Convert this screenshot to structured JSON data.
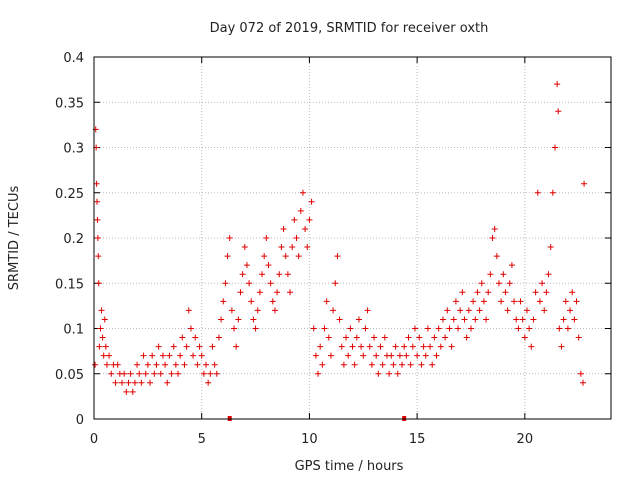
{
  "chart_data": {
    "type": "scatter",
    "title": "Day 072 of 2019, SRMTID for receiver oxth",
    "xlabel": "GPS time / hours",
    "ylabel": "SRMTID / TECUs",
    "xlim": [
      0,
      24
    ],
    "ylim": [
      0,
      0.4
    ],
    "xticks": [
      0,
      5,
      10,
      15,
      20
    ],
    "yticks": [
      0,
      0.05,
      0.1,
      0.15,
      0.2,
      0.25,
      0.3,
      0.35,
      0.4
    ],
    "xtick_labels": [
      "0",
      "5",
      "10",
      "15",
      "20"
    ],
    "ytick_labels": [
      "0",
      "0.05",
      "0.1",
      "0.15",
      "0.2",
      "0.25",
      "0.3",
      "0.35",
      "0.4"
    ],
    "grid": true,
    "marker": "+",
    "color": "#e00000",
    "series": [
      {
        "name": "SRMTID",
        "points": [
          [
            0.05,
            0.06
          ],
          [
            0.08,
            0.32
          ],
          [
            0.1,
            0.3
          ],
          [
            0.12,
            0.26
          ],
          [
            0.14,
            0.24
          ],
          [
            0.16,
            0.22
          ],
          [
            0.18,
            0.2
          ],
          [
            0.2,
            0.18
          ],
          [
            0.22,
            0.15
          ],
          [
            0.25,
            0.08
          ],
          [
            0.3,
            0.1
          ],
          [
            0.35,
            0.12
          ],
          [
            0.4,
            0.09
          ],
          [
            0.45,
            0.07
          ],
          [
            0.5,
            0.11
          ],
          [
            0.55,
            0.08
          ],
          [
            0.6,
            0.06
          ],
          [
            0.7,
            0.07
          ],
          [
            0.8,
            0.05
          ],
          [
            0.9,
            0.06
          ],
          [
            1.0,
            0.04
          ],
          [
            1.1,
            0.06
          ],
          [
            1.2,
            0.05
          ],
          [
            1.3,
            0.04
          ],
          [
            1.4,
            0.05
          ],
          [
            1.5,
            0.03
          ],
          [
            1.6,
            0.04
          ],
          [
            1.7,
            0.05
          ],
          [
            1.8,
            0.03
          ],
          [
            1.9,
            0.04
          ],
          [
            2.0,
            0.06
          ],
          [
            2.1,
            0.05
          ],
          [
            2.2,
            0.04
          ],
          [
            2.3,
            0.07
          ],
          [
            2.4,
            0.05
          ],
          [
            2.5,
            0.06
          ],
          [
            2.6,
            0.04
          ],
          [
            2.7,
            0.07
          ],
          [
            2.8,
            0.05
          ],
          [
            2.9,
            0.06
          ],
          [
            3.0,
            0.08
          ],
          [
            3.1,
            0.05
          ],
          [
            3.2,
            0.07
          ],
          [
            3.3,
            0.06
          ],
          [
            3.4,
            0.04
          ],
          [
            3.5,
            0.07
          ],
          [
            3.6,
            0.05
          ],
          [
            3.7,
            0.08
          ],
          [
            3.8,
            0.06
          ],
          [
            3.9,
            0.05
          ],
          [
            4.0,
            0.07
          ],
          [
            4.1,
            0.09
          ],
          [
            4.2,
            0.06
          ],
          [
            4.3,
            0.08
          ],
          [
            4.4,
            0.12
          ],
          [
            4.5,
            0.1
          ],
          [
            4.6,
            0.07
          ],
          [
            4.7,
            0.09
          ],
          [
            4.8,
            0.06
          ],
          [
            4.9,
            0.08
          ],
          [
            5.0,
            0.07
          ],
          [
            5.1,
            0.05
          ],
          [
            5.2,
            0.06
          ],
          [
            5.3,
            0.04
          ],
          [
            5.4,
            0.05
          ],
          [
            5.5,
            0.08
          ],
          [
            5.6,
            0.06
          ],
          [
            5.7,
            0.05
          ],
          [
            5.8,
            0.09
          ],
          [
            5.9,
            0.11
          ],
          [
            6.0,
            0.13
          ],
          [
            6.1,
            0.15
          ],
          [
            6.2,
            0.18
          ],
          [
            6.3,
            0.2
          ],
          [
            6.4,
            0.12
          ],
          [
            6.5,
            0.1
          ],
          [
            6.6,
            0.08
          ],
          [
            6.7,
            0.11
          ],
          [
            6.8,
            0.14
          ],
          [
            6.9,
            0.16
          ],
          [
            7.0,
            0.19
          ],
          [
            7.1,
            0.17
          ],
          [
            7.2,
            0.15
          ],
          [
            7.3,
            0.13
          ],
          [
            7.4,
            0.11
          ],
          [
            7.5,
            0.1
          ],
          [
            7.6,
            0.12
          ],
          [
            7.7,
            0.14
          ],
          [
            7.8,
            0.16
          ],
          [
            7.9,
            0.18
          ],
          [
            8.0,
            0.2
          ],
          [
            8.1,
            0.17
          ],
          [
            8.2,
            0.15
          ],
          [
            8.3,
            0.13
          ],
          [
            8.4,
            0.12
          ],
          [
            8.5,
            0.14
          ],
          [
            8.6,
            0.16
          ],
          [
            8.7,
            0.19
          ],
          [
            8.8,
            0.21
          ],
          [
            8.9,
            0.18
          ],
          [
            9.0,
            0.16
          ],
          [
            9.1,
            0.14
          ],
          [
            9.2,
            0.19
          ],
          [
            9.3,
            0.22
          ],
          [
            9.4,
            0.2
          ],
          [
            9.5,
            0.18
          ],
          [
            9.6,
            0.23
          ],
          [
            9.7,
            0.25
          ],
          [
            9.8,
            0.21
          ],
          [
            9.9,
            0.19
          ],
          [
            10.0,
            0.22
          ],
          [
            10.1,
            0.24
          ],
          [
            10.2,
            0.1
          ],
          [
            10.3,
            0.07
          ],
          [
            10.4,
            0.05
          ],
          [
            10.5,
            0.08
          ],
          [
            10.6,
            0.06
          ],
          [
            10.7,
            0.1
          ],
          [
            10.8,
            0.13
          ],
          [
            10.9,
            0.09
          ],
          [
            11.0,
            0.07
          ],
          [
            11.1,
            0.12
          ],
          [
            11.2,
            0.15
          ],
          [
            11.3,
            0.18
          ],
          [
            11.4,
            0.11
          ],
          [
            11.5,
            0.08
          ],
          [
            11.6,
            0.06
          ],
          [
            11.7,
            0.09
          ],
          [
            11.8,
            0.07
          ],
          [
            11.9,
            0.1
          ],
          [
            12.0,
            0.08
          ],
          [
            12.1,
            0.06
          ],
          [
            12.2,
            0.09
          ],
          [
            12.3,
            0.11
          ],
          [
            12.4,
            0.08
          ],
          [
            12.5,
            0.07
          ],
          [
            12.6,
            0.1
          ],
          [
            12.7,
            0.12
          ],
          [
            12.8,
            0.08
          ],
          [
            12.9,
            0.06
          ],
          [
            13.0,
            0.09
          ],
          [
            13.1,
            0.07
          ],
          [
            13.2,
            0.05
          ],
          [
            13.3,
            0.08
          ],
          [
            13.4,
            0.06
          ],
          [
            13.5,
            0.09
          ],
          [
            13.6,
            0.07
          ],
          [
            13.7,
            0.05
          ],
          [
            13.8,
            0.07
          ],
          [
            13.9,
            0.06
          ],
          [
            14.0,
            0.08
          ],
          [
            14.1,
            0.05
          ],
          [
            14.2,
            0.07
          ],
          [
            14.3,
            0.06
          ],
          [
            14.4,
            0.08
          ],
          [
            14.5,
            0.07
          ],
          [
            14.6,
            0.09
          ],
          [
            14.7,
            0.06
          ],
          [
            14.8,
            0.08
          ],
          [
            14.9,
            0.1
          ],
          [
            15.0,
            0.07
          ],
          [
            15.1,
            0.09
          ],
          [
            15.2,
            0.06
          ],
          [
            15.3,
            0.08
          ],
          [
            15.4,
            0.07
          ],
          [
            15.5,
            0.1
          ],
          [
            15.6,
            0.08
          ],
          [
            15.7,
            0.06
          ],
          [
            15.8,
            0.09
          ],
          [
            15.9,
            0.07
          ],
          [
            16.0,
            0.1
          ],
          [
            16.1,
            0.08
          ],
          [
            16.2,
            0.11
          ],
          [
            16.3,
            0.09
          ],
          [
            16.4,
            0.12
          ],
          [
            16.5,
            0.1
          ],
          [
            16.6,
            0.08
          ],
          [
            16.7,
            0.11
          ],
          [
            16.8,
            0.13
          ],
          [
            16.9,
            0.1
          ],
          [
            17.0,
            0.12
          ],
          [
            17.1,
            0.14
          ],
          [
            17.2,
            0.11
          ],
          [
            17.3,
            0.09
          ],
          [
            17.4,
            0.12
          ],
          [
            17.5,
            0.1
          ],
          [
            17.6,
            0.13
          ],
          [
            17.7,
            0.11
          ],
          [
            17.8,
            0.14
          ],
          [
            17.9,
            0.12
          ],
          [
            18.0,
            0.15
          ],
          [
            18.1,
            0.13
          ],
          [
            18.2,
            0.11
          ],
          [
            18.3,
            0.14
          ],
          [
            18.4,
            0.16
          ],
          [
            18.5,
            0.2
          ],
          [
            18.6,
            0.21
          ],
          [
            18.7,
            0.18
          ],
          [
            18.8,
            0.15
          ],
          [
            18.9,
            0.13
          ],
          [
            19.0,
            0.16
          ],
          [
            19.1,
            0.14
          ],
          [
            19.2,
            0.12
          ],
          [
            19.3,
            0.15
          ],
          [
            19.4,
            0.17
          ],
          [
            19.5,
            0.13
          ],
          [
            19.6,
            0.11
          ],
          [
            19.7,
            0.1
          ],
          [
            19.8,
            0.13
          ],
          [
            19.9,
            0.11
          ],
          [
            20.0,
            0.09
          ],
          [
            20.1,
            0.12
          ],
          [
            20.2,
            0.1
          ],
          [
            20.3,
            0.08
          ],
          [
            20.4,
            0.11
          ],
          [
            20.5,
            0.14
          ],
          [
            20.6,
            0.25
          ],
          [
            20.7,
            0.13
          ],
          [
            20.8,
            0.15
          ],
          [
            20.9,
            0.12
          ],
          [
            21.0,
            0.14
          ],
          [
            21.1,
            0.16
          ],
          [
            21.2,
            0.19
          ],
          [
            21.3,
            0.25
          ],
          [
            21.4,
            0.3
          ],
          [
            21.5,
            0.37
          ],
          [
            21.55,
            0.34
          ],
          [
            21.6,
            0.1
          ],
          [
            21.7,
            0.08
          ],
          [
            21.8,
            0.11
          ],
          [
            21.9,
            0.13
          ],
          [
            22.0,
            0.1
          ],
          [
            22.1,
            0.12
          ],
          [
            22.2,
            0.14
          ],
          [
            22.3,
            0.11
          ],
          [
            22.4,
            0.13
          ],
          [
            22.5,
            0.09
          ],
          [
            22.6,
            0.05
          ],
          [
            22.7,
            0.04
          ],
          [
            22.75,
            0.26
          ]
        ]
      }
    ],
    "axis_markers_hours": [
      6.3,
      14.4
    ]
  }
}
